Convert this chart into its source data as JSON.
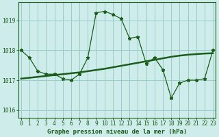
{
  "title": "Graphe pression niveau de la mer (hPa)",
  "background_color": "#ceecea",
  "grid_color": "#99cccc",
  "line_color": "#1a5c1a",
  "marker_color": "#1a5c1a",
  "hours": [
    0,
    1,
    2,
    3,
    4,
    5,
    6,
    7,
    8,
    9,
    10,
    11,
    12,
    13,
    14,
    15,
    16,
    17,
    18,
    19,
    20,
    21,
    22,
    23
  ],
  "pressure": [
    1018.0,
    1017.75,
    1017.3,
    1017.2,
    1017.2,
    1017.05,
    1017.0,
    1017.2,
    1017.75,
    1019.25,
    1019.3,
    1019.2,
    1019.05,
    1018.4,
    1018.45,
    1017.55,
    1017.75,
    1017.35,
    1016.4,
    1016.9,
    1017.0,
    1017.0,
    1017.05,
    1018.0
  ],
  "pressure_smooth": [
    1017.05,
    1017.08,
    1017.11,
    1017.14,
    1017.17,
    1017.2,
    1017.23,
    1017.26,
    1017.3,
    1017.34,
    1017.38,
    1017.43,
    1017.48,
    1017.53,
    1017.58,
    1017.63,
    1017.68,
    1017.73,
    1017.78,
    1017.82,
    1017.85,
    1017.87,
    1017.89,
    1017.9
  ],
  "ylim": [
    1015.75,
    1019.6
  ],
  "yticks": [
    1016,
    1017,
    1018,
    1019
  ],
  "title_fontsize": 6.5,
  "tick_fontsize": 5.8
}
